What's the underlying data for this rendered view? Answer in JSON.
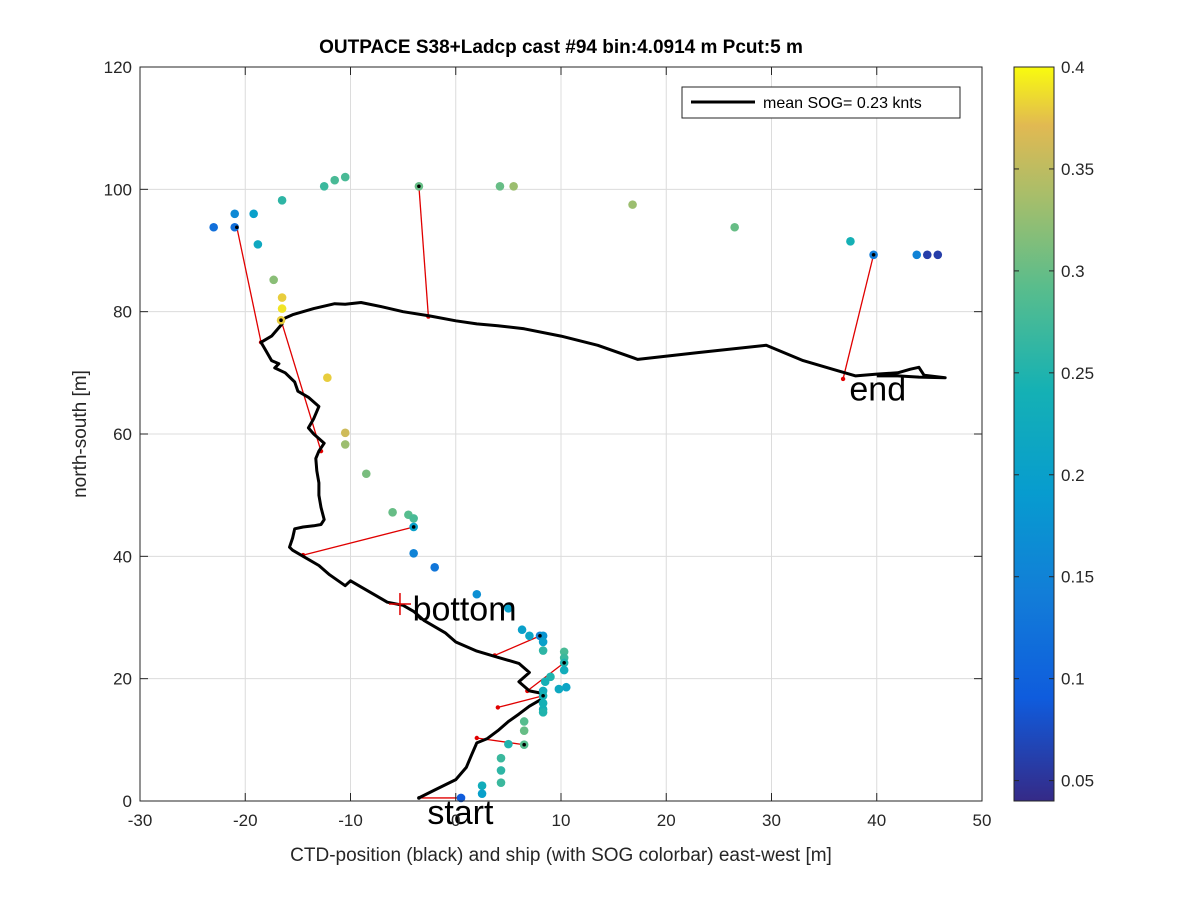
{
  "chart_data": {
    "type": "scatter",
    "title": "OUTPACE S38+Ladcp cast #94 bin:4.0914 m  Pcut:5 m",
    "xlabel": "CTD-position (black) and ship (with SOG colorbar) east-west [m]",
    "ylabel": "north-south [m]",
    "xlim": [
      -30,
      50
    ],
    "ylim": [
      0,
      120
    ],
    "xticks": [
      "-30",
      "-20",
      "-10",
      "0",
      "10",
      "20",
      "30",
      "40",
      "50"
    ],
    "yticks": [
      "0",
      "20",
      "40",
      "60",
      "80",
      "100",
      "120"
    ],
    "grid": true,
    "legend": {
      "position": "top-right",
      "label": "mean SOG=  0.23 knts",
      "color": "#000000"
    },
    "colorbar": {
      "range": [
        0.04,
        0.4
      ],
      "ticks": [
        "0.05",
        "0.1",
        "0.15",
        "0.2",
        "0.25",
        "0.3",
        "0.35",
        "0.4"
      ],
      "colormap": "parula"
    },
    "ctd_track": {
      "color": "#000000",
      "points": [
        [
          -3.5,
          0.5
        ],
        [
          -2,
          1.8
        ],
        [
          0,
          3.5
        ],
        [
          1,
          5.5
        ],
        [
          1.5,
          7.5
        ],
        [
          2,
          9.5
        ],
        [
          3,
          10.2
        ],
        [
          4,
          11.5
        ],
        [
          5,
          13
        ],
        [
          6,
          14.2
        ],
        [
          7,
          15.5
        ],
        [
          8,
          16.5
        ],
        [
          8.5,
          17.5
        ],
        [
          7,
          18
        ],
        [
          6,
          19.5
        ],
        [
          7,
          21
        ],
        [
          6,
          22.5
        ],
        [
          4,
          23.5
        ],
        [
          2,
          24.5
        ],
        [
          0,
          26
        ],
        [
          -1,
          27.5
        ],
        [
          -3,
          29.5
        ],
        [
          -4,
          31
        ],
        [
          -5,
          32
        ],
        [
          -6.5,
          32.5
        ],
        [
          -7.5,
          33.5
        ],
        [
          -9,
          35
        ],
        [
          -10,
          36
        ],
        [
          -10.5,
          35.2
        ],
        [
          -12,
          37
        ],
        [
          -13,
          38.5
        ],
        [
          -14.5,
          40
        ],
        [
          -15.5,
          41
        ],
        [
          -15.8,
          41.5
        ],
        [
          -15.5,
          43
        ],
        [
          -15.3,
          44.5
        ],
        [
          -14.5,
          44.8
        ],
        [
          -13.5,
          45
        ],
        [
          -12.8,
          45.2
        ],
        [
          -12.5,
          46
        ],
        [
          -12.8,
          48
        ],
        [
          -13,
          50
        ],
        [
          -13,
          52
        ],
        [
          -13.2,
          54
        ],
        [
          -13.3,
          56
        ],
        [
          -13,
          57.2
        ],
        [
          -12.5,
          58.5
        ],
        [
          -13.5,
          60
        ],
        [
          -14,
          61
        ],
        [
          -13.5,
          62.5
        ],
        [
          -13,
          64.5
        ],
        [
          -14,
          66
        ],
        [
          -15,
          67
        ],
        [
          -15.3,
          68.5
        ],
        [
          -16.2,
          70
        ],
        [
          -17.2,
          70.8
        ],
        [
          -16.8,
          71.5
        ],
        [
          -17.5,
          72
        ],
        [
          -18,
          73.5
        ],
        [
          -18.5,
          75
        ],
        [
          -17.5,
          76
        ],
        [
          -16.5,
          78
        ],
        [
          -16.8,
          78.5
        ],
        [
          -15.5,
          79.5
        ],
        [
          -13.5,
          80.5
        ],
        [
          -11.5,
          81.3
        ],
        [
          -10.5,
          81.2
        ],
        [
          -9,
          81.5
        ],
        [
          -7,
          80.8
        ],
        [
          -5,
          80
        ],
        [
          -2.5,
          79.3
        ],
        [
          0,
          78.5
        ],
        [
          2,
          78
        ],
        [
          4,
          77.7
        ],
        [
          6.5,
          77.2
        ],
        [
          10,
          76
        ],
        [
          13.5,
          74.5
        ],
        [
          17.3,
          72.2
        ],
        [
          23,
          73.3
        ],
        [
          29.5,
          74.5
        ],
        [
          33,
          72
        ],
        [
          36,
          70.5
        ],
        [
          38,
          69.5
        ],
        [
          40,
          69.8
        ],
        [
          42,
          70
        ],
        [
          43.2,
          70.6
        ],
        [
          44,
          70.9
        ],
        [
          44.5,
          69.6
        ],
        [
          46.5,
          69.2
        ],
        [
          44,
          69.3
        ],
        [
          42,
          69.5
        ],
        [
          40,
          69.5
        ]
      ]
    },
    "ship_points": [
      [
        -23,
        93.8,
        0.12
      ],
      [
        -21,
        96,
        0.16
      ],
      [
        -21,
        93.8,
        0.12
      ],
      [
        -19.2,
        96,
        0.2
      ],
      [
        -18.8,
        91,
        0.22
      ],
      [
        -16.5,
        98.2,
        0.26
      ],
      [
        -12.5,
        100.5,
        0.27
      ],
      [
        -11.5,
        101.5,
        0.28
      ],
      [
        -10.5,
        102,
        0.28
      ],
      [
        -3.5,
        100.5,
        0.3
      ],
      [
        4.2,
        100.5,
        0.3
      ],
      [
        5.5,
        100.5,
        0.33
      ],
      [
        16.8,
        97.5,
        0.33
      ],
      [
        26.5,
        93.8,
        0.3
      ],
      [
        37.5,
        91.5,
        0.24
      ],
      [
        39.7,
        89.3,
        0.14
      ],
      [
        43.8,
        89.3,
        0.15
      ],
      [
        44.8,
        89.3,
        0.06
      ],
      [
        45.8,
        89.3,
        0.06
      ],
      [
        -17.3,
        85.2,
        0.32
      ],
      [
        -16.5,
        82.3,
        0.38
      ],
      [
        -16.5,
        80.5,
        0.39
      ],
      [
        -16.6,
        78.6,
        0.38
      ],
      [
        -12.2,
        69.2,
        0.38
      ],
      [
        -10.5,
        60.2,
        0.36
      ],
      [
        -10.5,
        58.3,
        0.33
      ],
      [
        -8.5,
        53.5,
        0.31
      ],
      [
        -6,
        47.2,
        0.3
      ],
      [
        -4.5,
        46.8,
        0.29
      ],
      [
        -4,
        46.2,
        0.28
      ],
      [
        -4,
        44.8,
        0.2
      ],
      [
        -4,
        40.5,
        0.15
      ],
      [
        -2,
        38.2,
        0.13
      ],
      [
        2,
        33.8,
        0.17
      ],
      [
        5,
        31.5,
        0.2
      ],
      [
        6.3,
        28,
        0.2
      ],
      [
        7,
        27,
        0.21
      ],
      [
        8,
        27,
        0.15
      ],
      [
        8.3,
        27,
        0.18
      ],
      [
        8.3,
        26,
        0.2
      ],
      [
        8.3,
        24.6,
        0.26
      ],
      [
        10.3,
        24.4,
        0.28
      ],
      [
        10.3,
        23.4,
        0.27
      ],
      [
        10.3,
        22.6,
        0.25
      ],
      [
        10.3,
        21.4,
        0.23
      ],
      [
        9,
        20.3,
        0.25
      ],
      [
        8.5,
        19.5,
        0.24
      ],
      [
        10.5,
        18.6,
        0.21
      ],
      [
        9.8,
        18.3,
        0.22
      ],
      [
        8.3,
        18,
        0.23
      ],
      [
        8.3,
        17.2,
        0.24
      ],
      [
        8.3,
        16,
        0.24
      ],
      [
        8.3,
        15,
        0.24
      ],
      [
        8.3,
        14.5,
        0.25
      ],
      [
        6.5,
        13,
        0.29
      ],
      [
        6.5,
        11.5,
        0.3
      ],
      [
        5,
        9.3,
        0.25
      ],
      [
        6.5,
        9.2,
        0.29
      ],
      [
        4.3,
        7,
        0.27
      ],
      [
        4.3,
        5,
        0.26
      ],
      [
        4.3,
        3,
        0.27
      ],
      [
        2.5,
        2.5,
        0.23
      ],
      [
        2.5,
        1.2,
        0.2
      ],
      [
        0.5,
        0.5,
        0.09
      ]
    ],
    "offset_lines": {
      "color": "#e00000",
      "segments": [
        [
          [
            -20.8,
            93.8
          ],
          [
            -18.5,
            75
          ]
        ],
        [
          [
            -16.6,
            78.6
          ],
          [
            -12.8,
            57.2
          ]
        ],
        [
          [
            -3.5,
            100.5
          ],
          [
            -2.6,
            79.2
          ]
        ],
        [
          [
            39.7,
            89.3
          ],
          [
            36.8,
            69
          ]
        ],
        [
          [
            -4,
            44.8
          ],
          [
            -14.5,
            40.2
          ]
        ],
        [
          [
            8,
            27
          ],
          [
            3.7,
            23.8
          ]
        ],
        [
          [
            10.3,
            22.6
          ],
          [
            6.8,
            18
          ]
        ],
        [
          [
            8.3,
            17.2
          ],
          [
            4,
            15.3
          ]
        ],
        [
          [
            6.5,
            9.2
          ],
          [
            2,
            10.3
          ]
        ],
        [
          [
            -3.5,
            0.5
          ],
          [
            0.5,
            0.5
          ]
        ]
      ]
    },
    "markers": [
      {
        "label": "bottom",
        "x": -5.3,
        "y": 32.2,
        "color": "#e00000"
      }
    ],
    "annotations": [
      {
        "text": "start",
        "x": -2.7,
        "y": -3.8
      },
      {
        "text": "bottom",
        "x": -4.1,
        "y": 29.5
      },
      {
        "text": "end",
        "x": 37.4,
        "y": 65.5
      }
    ]
  }
}
